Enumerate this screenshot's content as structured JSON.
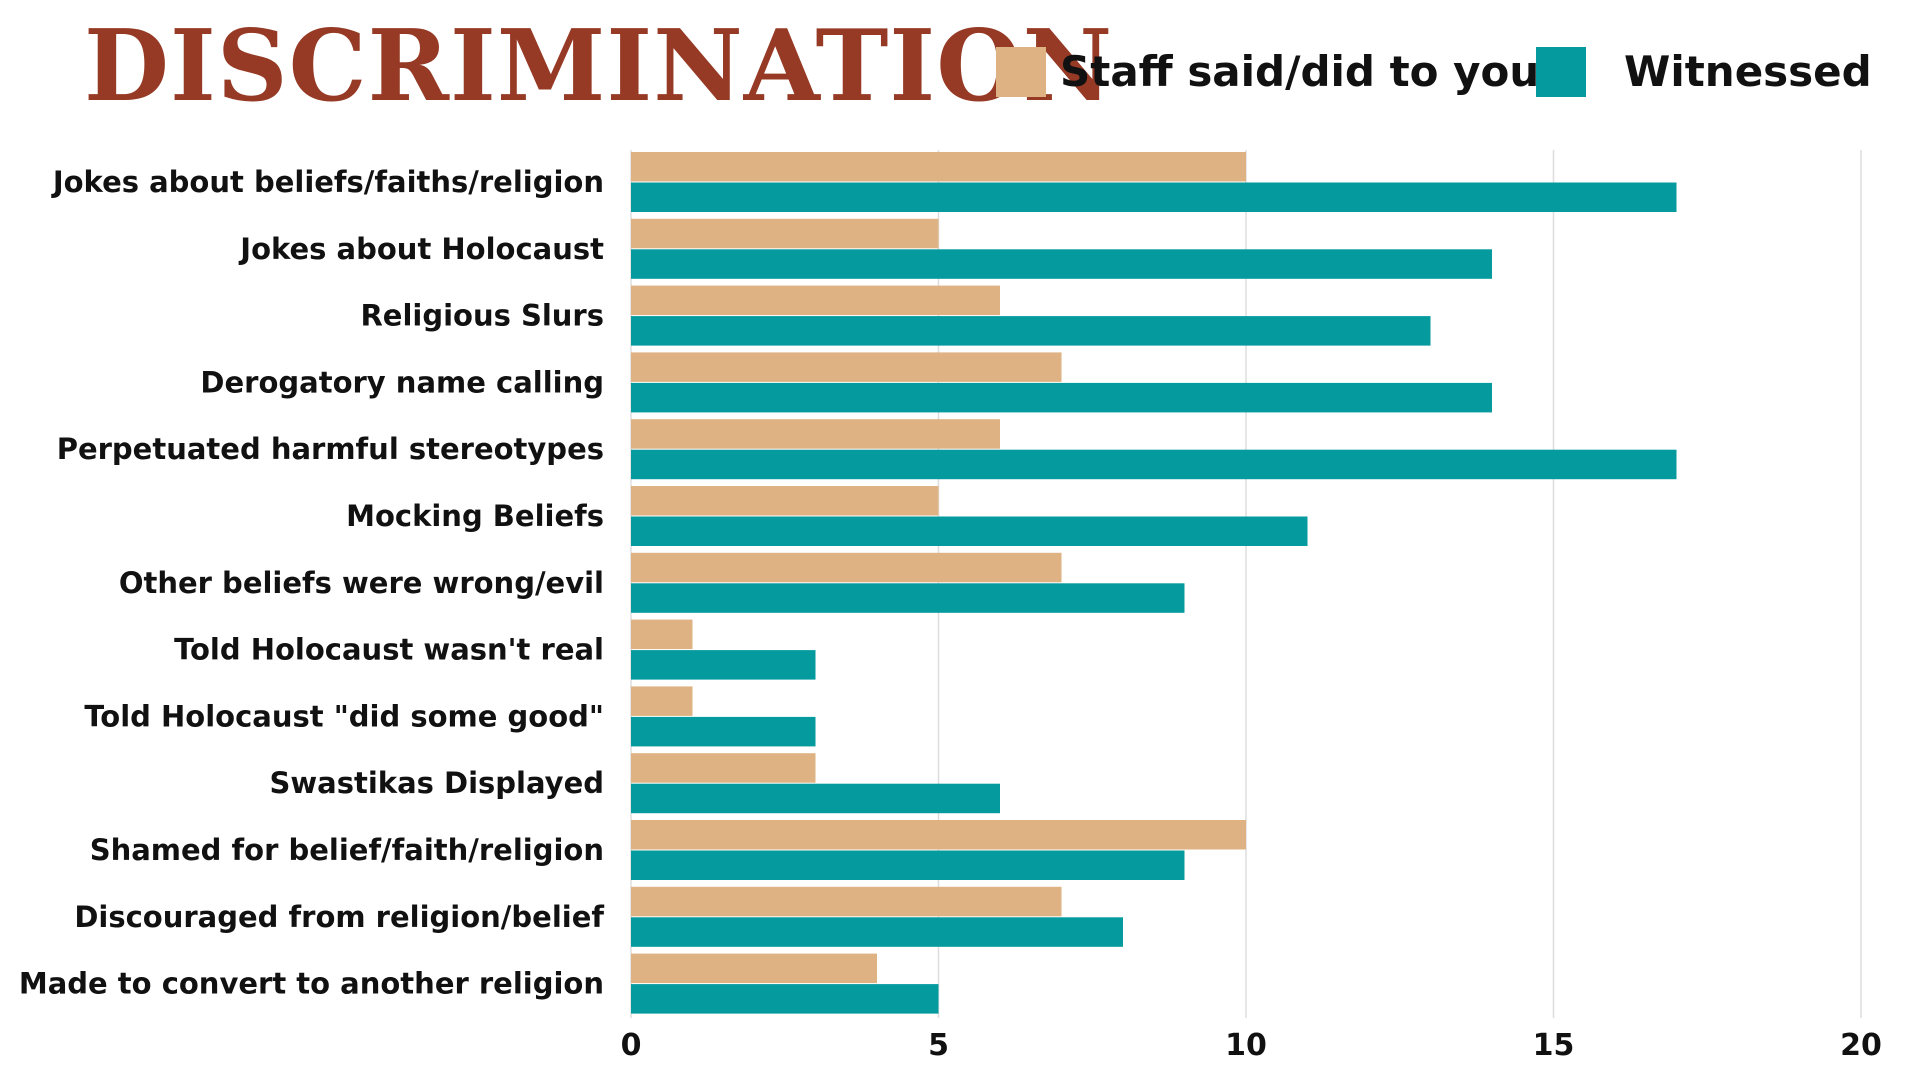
{
  "chart_data": {
    "type": "bar",
    "orientation": "horizontal",
    "title": "DISCRIMINATION",
    "xlabel": "",
    "ylabel": "",
    "xlim": [
      0,
      20
    ],
    "xticks": [
      0,
      5,
      10,
      15,
      20
    ],
    "grid": true,
    "legend_position": "top-right",
    "categories": [
      "Jokes about beliefs/faiths/religion",
      "Jokes about Holocaust",
      "Religious Slurs",
      "Derogatory name calling",
      "Perpetuated harmful stereotypes",
      "Mocking Beliefs",
      "Other beliefs were wrong/evil",
      "Told Holocaust wasn't real",
      "Told Holocaust \"did some good\"",
      "Swastikas Displayed",
      "Shamed for belief/faith/religion",
      "Discouraged from religion/belief",
      "Made to convert to another religion"
    ],
    "series": [
      {
        "name": "Staff said/did to you",
        "color": "#deb282",
        "values": [
          10,
          5,
          6,
          7,
          6,
          5,
          7,
          1,
          1,
          3,
          10,
          7,
          4
        ]
      },
      {
        "name": "Witnessed",
        "color": "#049a9e",
        "values": [
          17,
          14,
          13,
          14,
          17,
          11,
          9,
          3,
          3,
          6,
          9,
          8,
          5
        ]
      }
    ]
  },
  "colors": {
    "title": "#963a25",
    "gridline": "#dddddd",
    "text": "#111111"
  }
}
